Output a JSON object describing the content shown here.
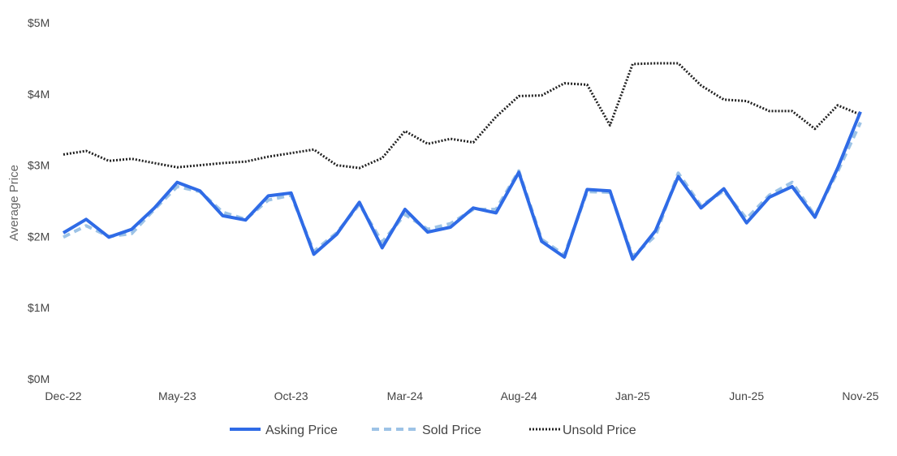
{
  "chart_data": {
    "type": "line",
    "ylabel": "Average Price",
    "xlabel": "",
    "ylim": [
      0,
      5000000
    ],
    "y_ticks": [
      {
        "value": 0,
        "label": "$0M"
      },
      {
        "value": 1000000,
        "label": "$1M"
      },
      {
        "value": 2000000,
        "label": "$2M"
      },
      {
        "value": 3000000,
        "label": "$3M"
      },
      {
        "value": 4000000,
        "label": "$4M"
      },
      {
        "value": 5000000,
        "label": "$5M"
      }
    ],
    "x_tick_labels": [
      "Dec-22",
      "May-23",
      "Oct-23",
      "Mar-24",
      "Aug-24",
      "Jan-25",
      "Jun-25",
      "Nov-25"
    ],
    "categories": [
      "Dec-22",
      "Jan-23",
      "Feb-23",
      "Mar-23",
      "Apr-23",
      "May-23",
      "Jun-23",
      "Jul-23",
      "Aug-23",
      "Sep-23",
      "Oct-23",
      "Nov-23",
      "Dec-23",
      "Jan-24",
      "Feb-24",
      "Mar-24",
      "Apr-24",
      "May-24",
      "Jun-24",
      "Jul-24",
      "Aug-24",
      "Sep-24",
      "Oct-24",
      "Nov-24",
      "Dec-24",
      "Jan-25",
      "Feb-25",
      "Mar-25",
      "Apr-25",
      "May-25",
      "Jun-25",
      "Jul-25",
      "Aug-25",
      "Sep-25",
      "Oct-25",
      "Nov-25"
    ],
    "series": [
      {
        "name": "Asking Price",
        "color": "#2f6be6",
        "style": "solid",
        "values": [
          2050000,
          2240000,
          1990000,
          2100000,
          2400000,
          2760000,
          2640000,
          2290000,
          2230000,
          2570000,
          2610000,
          1750000,
          2030000,
          2480000,
          1840000,
          2380000,
          2060000,
          2130000,
          2400000,
          2330000,
          2900000,
          1930000,
          1710000,
          2660000,
          2640000,
          1680000,
          2080000,
          2840000,
          2400000,
          2670000,
          2190000,
          2550000,
          2700000,
          2270000,
          2960000,
          3750000
        ]
      },
      {
        "name": "Sold Price",
        "color": "#9dc3e6",
        "style": "dashed",
        "values": [
          1990000,
          2150000,
          2000000,
          2040000,
          2380000,
          2700000,
          2630000,
          2340000,
          2240000,
          2510000,
          2580000,
          1790000,
          2050000,
          2450000,
          1920000,
          2310000,
          2100000,
          2180000,
          2380000,
          2380000,
          2920000,
          1960000,
          1740000,
          2630000,
          2620000,
          1720000,
          2010000,
          2890000,
          2430000,
          2640000,
          2250000,
          2580000,
          2760000,
          2290000,
          2910000,
          3600000
        ]
      },
      {
        "name": "Unsold Price",
        "color": "#222222",
        "style": "dotted",
        "values": [
          3150000,
          3200000,
          3060000,
          3090000,
          3030000,
          2970000,
          3000000,
          3030000,
          3050000,
          3120000,
          3170000,
          3220000,
          3000000,
          2960000,
          3100000,
          3480000,
          3300000,
          3370000,
          3320000,
          3680000,
          3970000,
          3980000,
          4150000,
          4130000,
          3560000,
          4420000,
          4430000,
          4430000,
          4120000,
          3920000,
          3900000,
          3760000,
          3760000,
          3510000,
          3840000,
          3710000
        ]
      }
    ],
    "legend_position": "bottom",
    "grid": false
  }
}
